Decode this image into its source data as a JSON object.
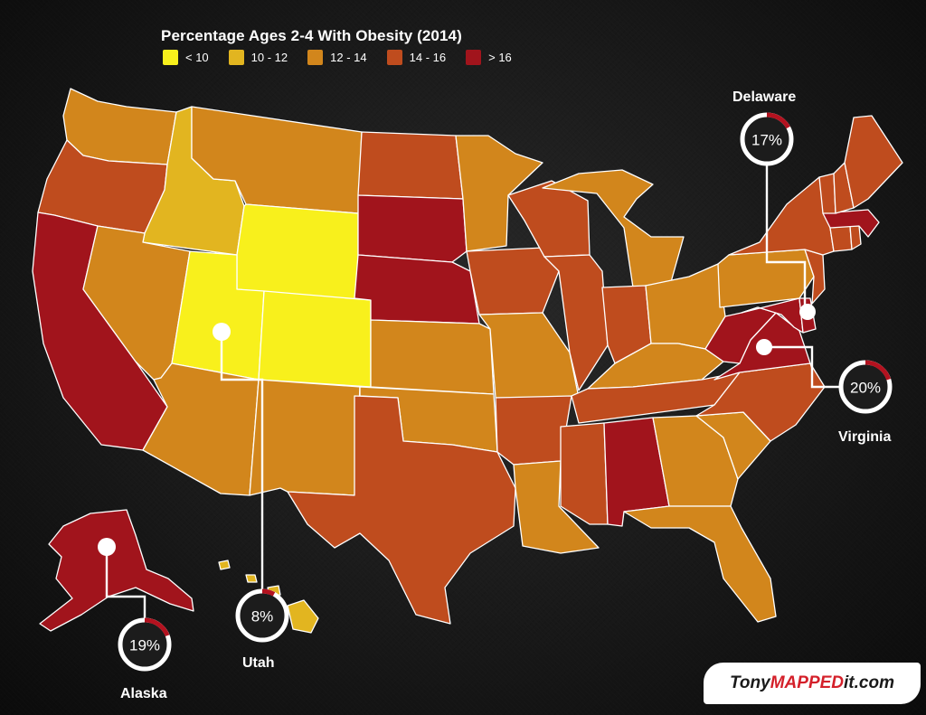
{
  "title": "Percentage Ages 2-4 With Obesity (2014)",
  "legend": [
    {
      "label": "< 10",
      "color": "#f8f01c"
    },
    {
      "label": "10 - 12",
      "color": "#e2b520"
    },
    {
      "label": "12 - 14",
      "color": "#d2861c"
    },
    {
      "label": "14 - 16",
      "color": "#bf4c1e"
    },
    {
      "label": "> 16",
      "color": "#a1141c"
    }
  ],
  "callouts": {
    "delaware": {
      "name": "Delaware",
      "value": "17%",
      "fraction": 0.17
    },
    "virginia": {
      "name": "Virginia",
      "value": "20%",
      "fraction": 0.2
    },
    "utah": {
      "name": "Utah",
      "value": "8%",
      "fraction": 0.08
    },
    "alaska": {
      "name": "Alaska",
      "value": "19%",
      "fraction": 0.19
    }
  },
  "brand": {
    "part1": "Tony",
    "part2": "MAPPED",
    "part3": "it.com"
  },
  "states": {
    "WA": "12 - 14",
    "OR": "14 - 16",
    "CA": "> 16",
    "ID": "10 - 12",
    "NV": "12 - 14",
    "MT": "12 - 14",
    "WY": "< 10",
    "UT": "< 10",
    "CO": "< 10",
    "AZ": "12 - 14",
    "NM": "12 - 14",
    "ND": "14 - 16",
    "SD": "> 16",
    "NE": "> 16",
    "KS": "12 - 14",
    "OK": "12 - 14",
    "TX": "14 - 16",
    "MN": "12 - 14",
    "IA": "14 - 16",
    "MO": "12 - 14",
    "AR": "14 - 16",
    "LA": "12 - 14",
    "WI": "14 - 16",
    "IL": "14 - 16",
    "MS": "14 - 16",
    "MI": "12 - 14",
    "IN": "14 - 16",
    "KY": "12 - 14",
    "TN": "14 - 16",
    "AL": "> 16",
    "OH": "12 - 14",
    "GA": "12 - 14",
    "FL": "12 - 14",
    "SC": "12 - 14",
    "NC": "14 - 16",
    "VA": "> 16",
    "WV": "> 16",
    "PA": "12 - 14",
    "NY": "14 - 16",
    "NJ": "14 - 16",
    "DE": "> 16",
    "MD": "> 16",
    "VT": "14 - 16",
    "NH": "14 - 16",
    "ME": "14 - 16",
    "MA": "> 16",
    "CT": "14 - 16",
    "RI": "14 - 16",
    "AK": "> 16",
    "HI": "10 - 12"
  }
}
